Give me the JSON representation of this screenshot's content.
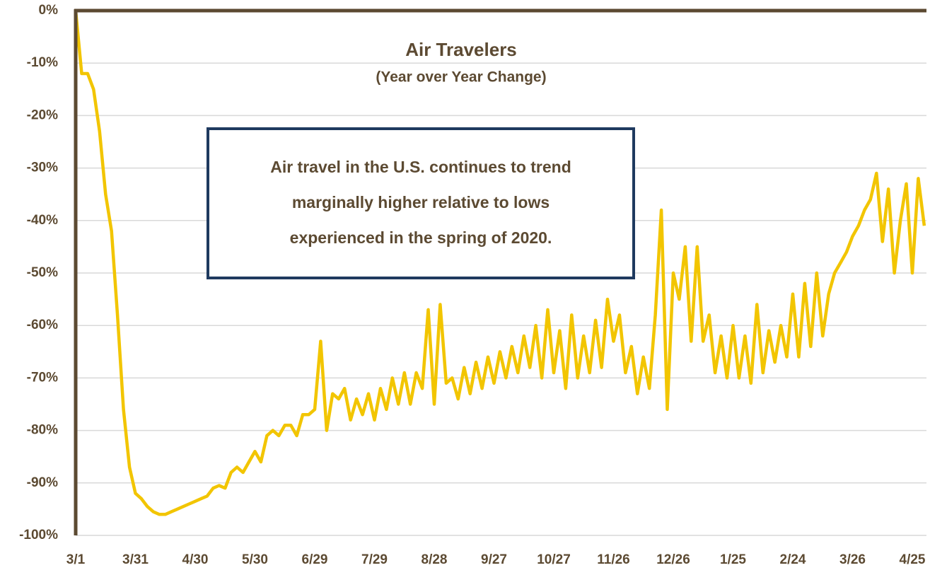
{
  "chart_data": {
    "type": "line",
    "title": "Air Travelers",
    "subtitle": "(Year over Year Change)",
    "annotation": [
      "Air travel in the U.S. continues to trend",
      "marginally higher relative to lows",
      "experienced in the spring of 2020."
    ],
    "categories": [
      "3/1",
      null,
      null,
      null,
      null,
      null,
      null,
      null,
      null,
      null,
      "3/31",
      null,
      null,
      null,
      null,
      null,
      null,
      null,
      null,
      null,
      "4/30",
      null,
      null,
      null,
      null,
      null,
      null,
      null,
      null,
      null,
      "5/30",
      null,
      null,
      null,
      null,
      null,
      null,
      null,
      null,
      null,
      "6/29",
      null,
      null,
      null,
      null,
      null,
      null,
      null,
      null,
      null,
      "7/29",
      null,
      null,
      null,
      null,
      null,
      null,
      null,
      null,
      null,
      "8/28",
      null,
      null,
      null,
      null,
      null,
      null,
      null,
      null,
      null,
      "9/27",
      null,
      null,
      null,
      null,
      null,
      null,
      null,
      null,
      null,
      "10/27",
      null,
      null,
      null,
      null,
      null,
      null,
      null,
      null,
      null,
      "11/26",
      null,
      null,
      null,
      null,
      null,
      null,
      null,
      null,
      null,
      "12/26",
      null,
      null,
      null,
      null,
      null,
      null,
      null,
      null,
      null,
      "1/25",
      null,
      null,
      null,
      null,
      null,
      null,
      null,
      null,
      null,
      "2/24",
      null,
      null,
      null,
      null,
      null,
      null,
      null,
      null,
      null,
      "3/26",
      null,
      null,
      null,
      null,
      null,
      null,
      null,
      null,
      null,
      "4/25",
      null,
      null
    ],
    "values": [
      0,
      -12,
      -12,
      -15,
      -23,
      -35,
      -42,
      -58,
      -76,
      -87,
      -92,
      -93,
      -94.5,
      -95.5,
      -96,
      -96,
      -95.5,
      -95,
      -94.5,
      -94,
      -93.5,
      -93,
      -92.5,
      -91,
      -90.5,
      -91,
      -88,
      -87,
      -88,
      -86,
      -84,
      -86,
      -81,
      -80,
      -81,
      -79,
      -79,
      -81,
      -77,
      -77,
      -76,
      -63,
      -80,
      -73,
      -74,
      -72,
      -78,
      -74,
      -77,
      -73,
      -78,
      -72,
      -76,
      -70,
      -75,
      -69,
      -75,
      -69,
      -72,
      -57,
      -75,
      -56,
      -71,
      -70,
      -74,
      -68,
      -73,
      -67,
      -72,
      -66,
      -71,
      -65,
      -70,
      -64,
      -69,
      -62,
      -68,
      -60,
      -70,
      -57,
      -69,
      -61,
      -72,
      -58,
      -70,
      -62,
      -69,
      -59,
      -68,
      -55,
      -63,
      -58,
      -69,
      -64,
      -73,
      -66,
      -72,
      -58,
      -38,
      -76,
      -50,
      -55,
      -45,
      -63,
      -45,
      -63,
      -58,
      -69,
      -62,
      -70,
      -60,
      -70,
      -62,
      -71,
      -56,
      -69,
      -61,
      -67,
      -60,
      -66,
      -54,
      -66,
      -52,
      -64,
      -50,
      -62,
      -54,
      -50,
      -48,
      -46,
      -43,
      -41,
      -38,
      -36,
      -31,
      -44,
      -34,
      -50,
      -40,
      -33,
      -50,
      -32,
      -41
    ],
    "color": "#f2c500",
    "ylim": [
      -100,
      0
    ],
    "yticks": [
      {
        "value": 0,
        "label": "0%"
      },
      {
        "value": -10,
        "label": "-10%"
      },
      {
        "value": -20,
        "label": "-20%"
      },
      {
        "value": -30,
        "label": "-30%"
      },
      {
        "value": -40,
        "label": "-40%"
      },
      {
        "value": -50,
        "label": "-50%"
      },
      {
        "value": -60,
        "label": "-60%"
      },
      {
        "value": -70,
        "label": "-70%"
      },
      {
        "value": -80,
        "label": "-80%"
      },
      {
        "value": -90,
        "label": "-90%"
      },
      {
        "value": -100,
        "label": "-100%"
      }
    ],
    "grid": true
  }
}
